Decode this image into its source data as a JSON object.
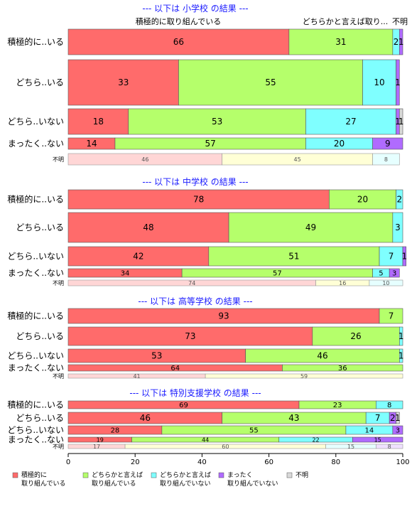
{
  "chart_data": {
    "type": "bar",
    "orientation": "horizontal",
    "stacked": true,
    "xlim": [
      0,
      100
    ],
    "x_ticks": [
      "0",
      "20",
      "40",
      "60",
      "80",
      "100"
    ],
    "top_labels": [
      "積極的に取り組んでいる",
      "どちらかと言えば取り...",
      "不明"
    ],
    "legend": [
      {
        "name": "積極的に\n取り組んでいる",
        "color": "#ff6b6b"
      },
      {
        "name": "どちらかと言えば\n取り組んでいる",
        "color": "#b5ff6b"
      },
      {
        "name": "どちらかと言えば\n取り組んでいない",
        "color": "#7fffff"
      },
      {
        "name": "まったく\n取り組んでいない",
        "color": "#b06bff"
      },
      {
        "name": "不明",
        "color": "#d9d9d9"
      }
    ],
    "panels": [
      {
        "title": "--- 以下は 小学校 の結果 ---",
        "rows": [
          {
            "label": "積極的に..いる",
            "values": [
              66,
              31,
              2,
              1,
              0
            ]
          },
          {
            "label": "どちら..いる",
            "values": [
              33,
              55,
              10,
              1,
              0
            ]
          },
          {
            "label": "どちら..いない",
            "values": [
              18,
              53,
              27,
              1,
              1
            ]
          },
          {
            "label": "まったく..ない",
            "values": [
              14,
              57,
              20,
              9,
              0
            ]
          },
          {
            "label": "不明",
            "values": [
              46,
              45,
              8,
              0,
              0
            ]
          }
        ]
      },
      {
        "title": "--- 以下は 中学校 の結果 ---",
        "rows": [
          {
            "label": "積極的に..いる",
            "values": [
              78,
              20,
              2,
              0,
              0
            ]
          },
          {
            "label": "どちら..いる",
            "values": [
              48,
              49,
              3,
              0,
              0
            ]
          },
          {
            "label": "どちら..いない",
            "values": [
              42,
              51,
              7,
              1,
              0
            ]
          },
          {
            "label": "まったく..ない",
            "values": [
              34,
              57,
              5,
              3,
              0
            ]
          },
          {
            "label": "不明",
            "values": [
              74,
              16,
              10,
              0,
              0
            ]
          }
        ]
      },
      {
        "title": "--- 以下は 高等学校 の結果 ---",
        "rows": [
          {
            "label": "積極的に..いる",
            "values": [
              93,
              7,
              0,
              0,
              0
            ]
          },
          {
            "label": "どちら..いる",
            "values": [
              73,
              26,
              1,
              0,
              0
            ]
          },
          {
            "label": "どちら..いない",
            "values": [
              53,
              46,
              1,
              0,
              0
            ]
          },
          {
            "label": "まったく..ない",
            "values": [
              64,
              36,
              0,
              0,
              0
            ]
          },
          {
            "label": "不明",
            "values": [
              41,
              59,
              0,
              0,
              0
            ]
          }
        ]
      },
      {
        "title": "--- 以下は 特別支援学校 の結果 ---",
        "rows": [
          {
            "label": "積極的に..いる",
            "values": [
              69,
              23,
              8,
              0,
              0
            ]
          },
          {
            "label": "どちら..いる",
            "values": [
              46,
              43,
              7,
              2,
              1
            ]
          },
          {
            "label": "どちら..いない",
            "values": [
              28,
              55,
              14,
              3,
              0
            ]
          },
          {
            "label": "まったく..ない",
            "values": [
              19,
              44,
              22,
              15,
              0
            ]
          },
          {
            "label": "不明",
            "values": [
              17,
              60,
              15,
              8,
              0
            ]
          }
        ]
      }
    ]
  }
}
